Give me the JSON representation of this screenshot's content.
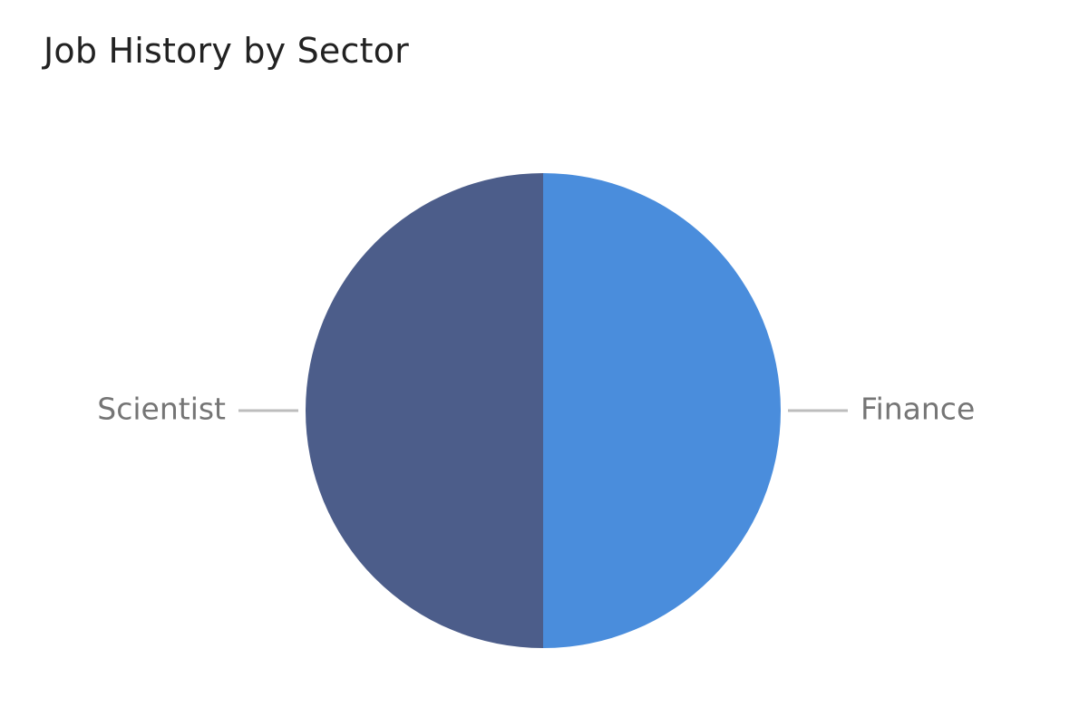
{
  "chart_data": {
    "type": "pie",
    "title": "Job History by Sector",
    "slices": [
      {
        "label": "Finance",
        "value": 50,
        "color": "#4a8ddc"
      },
      {
        "label": "Scientist",
        "value": 50,
        "color": "#4c5d8a"
      }
    ],
    "start_angle_deg": 0,
    "direction": "clockwise",
    "label_style": "outside-with-leader-lines",
    "legend": "none"
  },
  "colors": {
    "background": "#ffffff",
    "title_text": "#222222",
    "label_text": "#757575",
    "leader_line": "#bdbdbd"
  }
}
